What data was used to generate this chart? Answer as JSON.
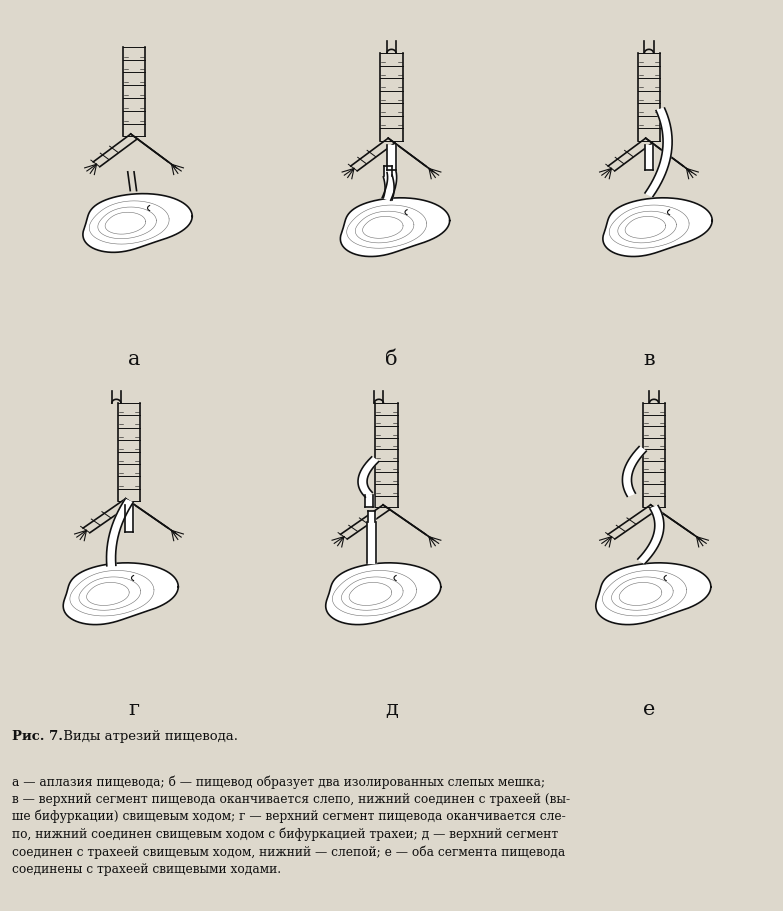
{
  "caption_bold": "Рис. 7.",
  "caption_normal": " Виды атрезий пищевода.",
  "caption_body": "а — аплазия пищевода; б — пищевод образует два изолированных слепых мешка;\nв — верхний сегмент пищевода оканчивается слепо, нижний соединен с трахеей (вы-\nше бифуркации) свищевым ходом; г — верхний сегмент пищевода оканчивается сле-\nпо, нижний соединен свищевым ходом с бифуркацией трахеи; д — верхний сегмент\nсоединен с трахеей свищевым ходом, нижний — слепой; е — оба сегмента пищевода\nсоединены с трахеей свищевыми ходами.",
  "labels": [
    "а",
    "б",
    "в",
    "г",
    "д",
    "е"
  ],
  "bg_color": "#ddd8cc",
  "line_color": "#111111",
  "figsize": [
    7.83,
    9.11
  ],
  "dpi": 100
}
